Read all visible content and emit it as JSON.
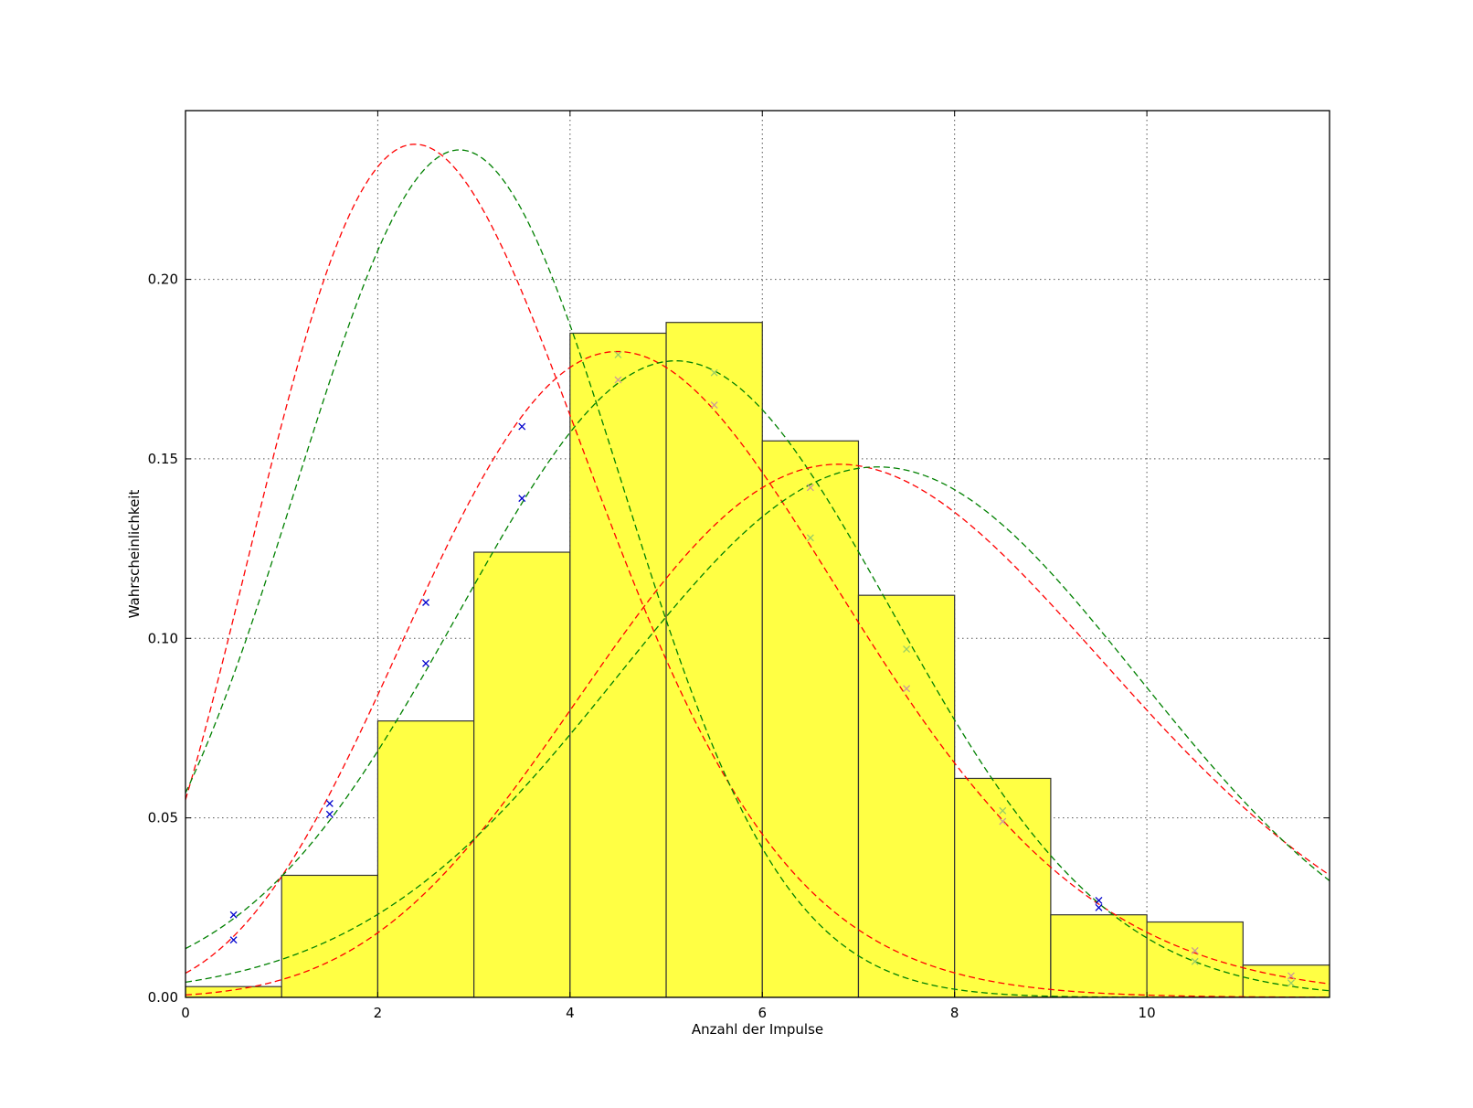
{
  "chart_data": {
    "type": "bar",
    "title": "",
    "xlabel": "Anzahl der Impulse",
    "ylabel": "Wahrscheinlichkeit",
    "xlim": [
      0,
      11.9
    ],
    "ylim": [
      0,
      0.247
    ],
    "xticks": [
      0,
      2,
      4,
      6,
      8,
      10
    ],
    "yticks": [
      0.0,
      0.05,
      0.1,
      0.15,
      0.2
    ],
    "ytick_labels": [
      "0.00",
      "0.05",
      "0.10",
      "0.15",
      "0.20"
    ],
    "grid": true,
    "bar_color": "#ffff44",
    "bar_edge_color": "#333333",
    "histogram": {
      "bin_edges": [
        0,
        1,
        2,
        3,
        4,
        5,
        6,
        7,
        8,
        9,
        10,
        11,
        12
      ],
      "values": [
        0.003,
        0.034,
        0.077,
        0.124,
        0.185,
        0.188,
        0.155,
        0.112,
        0.061,
        0.023,
        0.021,
        0.009
      ]
    },
    "curves": [
      {
        "color": "#ff0000",
        "style": "dashed",
        "kind": "poisson",
        "lambda": 2.9
      },
      {
        "color": "#008000",
        "style": "dashed",
        "kind": "gauss",
        "mu": 2.85,
        "sigma": 1.69
      },
      {
        "color": "#ff0000",
        "style": "dashed",
        "kind": "poisson",
        "lambda": 5.0
      },
      {
        "color": "#008000",
        "style": "dashed",
        "kind": "gauss",
        "mu": 5.1,
        "sigma": 2.25
      },
      {
        "color": "#ff0000",
        "style": "dashed",
        "kind": "poisson",
        "lambda": 7.3
      },
      {
        "color": "#008000",
        "style": "dashed",
        "kind": "gauss",
        "mu": 7.2,
        "sigma": 2.7
      }
    ],
    "markers": [
      {
        "color": "#0000cc",
        "symbol": "x",
        "points": [
          [
            0.5,
            0.023
          ],
          [
            1.5,
            0.051
          ],
          [
            2.5,
            0.093
          ],
          [
            3.5,
            0.139
          ],
          [
            9.5,
            0.025
          ]
        ]
      },
      {
        "color": "#0000cc",
        "symbol": "x",
        "points": [
          [
            0.5,
            0.016
          ],
          [
            1.5,
            0.054
          ],
          [
            2.5,
            0.11
          ],
          [
            3.5,
            0.159
          ],
          [
            9.5,
            0.027
          ]
        ]
      },
      {
        "color": "#99cc66",
        "symbol": "x",
        "points": [
          [
            4.5,
            0.179
          ],
          [
            5.5,
            0.174
          ],
          [
            6.5,
            0.128
          ],
          [
            7.5,
            0.097
          ],
          [
            8.5,
            0.052
          ],
          [
            10.5,
            0.01
          ],
          [
            11.5,
            0.004
          ]
        ]
      },
      {
        "color": "#cc9999",
        "symbol": "x",
        "points": [
          [
            4.5,
            0.172
          ],
          [
            5.5,
            0.165
          ],
          [
            6.5,
            0.142
          ],
          [
            7.5,
            0.086
          ],
          [
            8.5,
            0.049
          ],
          [
            10.5,
            0.013
          ],
          [
            11.5,
            0.006
          ]
        ]
      }
    ]
  }
}
